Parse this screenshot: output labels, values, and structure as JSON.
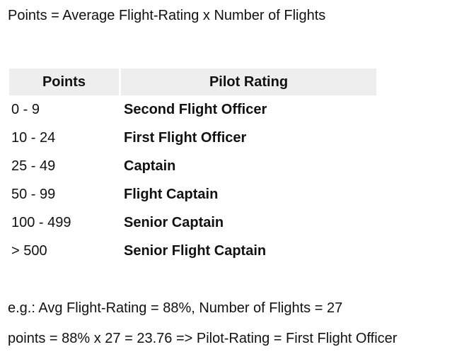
{
  "formula": "Points = Average Flight-Rating x Number of Flights",
  "table": {
    "headers": {
      "points": "Points",
      "rating": "Pilot Rating"
    },
    "rows": [
      {
        "points": "0 - 9",
        "rating": "Second Flight Officer"
      },
      {
        "points": "10 - 24",
        "rating": "First Flight Officer"
      },
      {
        "points": "25 - 49",
        "rating": "Captain"
      },
      {
        "points": "50 - 99",
        "rating": "Flight Captain"
      },
      {
        "points": "100 - 499",
        "rating": "Senior Captain"
      },
      {
        "points": "> 500",
        "rating": "Senior Flight Captain"
      }
    ]
  },
  "example": {
    "line1": "e.g.: Avg Flight-Rating = 88%, Number of Flights = 27",
    "line2": "points = 88% x 27 = 23.76 => Pilot-Rating = First Flight Officer"
  }
}
